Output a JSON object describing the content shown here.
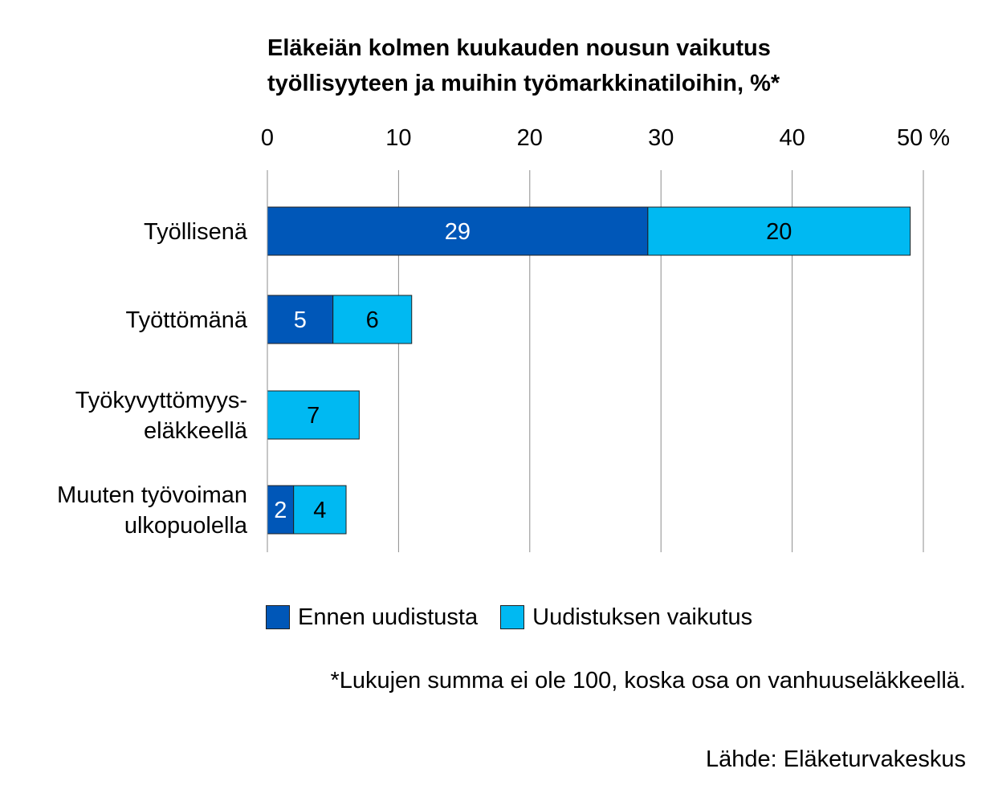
{
  "title_lines": [
    "Eläkeiän kolmen kuukauden nousun vaikutus",
    "työllisyyteen ja muihin työmarkkinatiloihin, %*"
  ],
  "footnote": "*Lukujen summa ei ole 100, koska osa on vanhuuseläkkeellä.",
  "source": "Lähde: Eläketurvakeskus",
  "chart_data": {
    "type": "bar",
    "orientation": "horizontal",
    "stacked": true,
    "title": "Eläkeiän kolmen kuukauden nousun vaikutus työllisyyteen ja muihin työmarkkinatiloihin, %*",
    "categories": [
      [
        "Työllisenä"
      ],
      [
        "Työttömänä"
      ],
      [
        "Työkyvyttömyys-",
        "eläkkeellä"
      ],
      [
        "Muuten työvoiman",
        "ulkopuolella"
      ]
    ],
    "series": [
      {
        "name": "Ennen uudistusta",
        "color": "#0057b8",
        "label_color": "#ffffff",
        "values": [
          29,
          5,
          0,
          2
        ],
        "labels": [
          "29",
          "5",
          "",
          "2"
        ]
      },
      {
        "name": "Uudistuksen vaikutus",
        "color": "#00b9f2",
        "label_color": "#000000",
        "values": [
          20,
          6,
          7,
          4
        ],
        "labels": [
          "20",
          "6",
          "7",
          "4"
        ]
      }
    ],
    "xlim": [
      0,
      50
    ],
    "xticks": [
      0,
      10,
      20,
      30,
      40,
      50
    ],
    "xtick_labels": [
      "0",
      "10",
      "20",
      "30",
      "40",
      "50 %"
    ],
    "axis_position": "top",
    "grid": true,
    "legend_position": "bottom"
  }
}
